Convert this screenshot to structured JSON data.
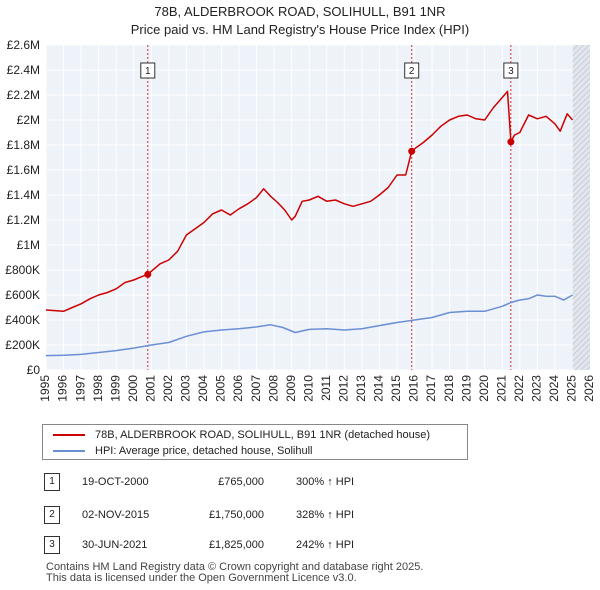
{
  "chart_data": {
    "type": "line",
    "title": "78B, ALDERBROOK ROAD, SOLIHULL, B91 1NR",
    "subtitle": "Price paid vs. HM Land Registry's House Price Index (HPI)",
    "xlim": [
      1995,
      2026
    ],
    "ylim": [
      0,
      2600000
    ],
    "x_ticks": [
      1995,
      1996,
      1997,
      1998,
      1999,
      2000,
      2001,
      2002,
      2003,
      2004,
      2005,
      2006,
      2007,
      2008,
      2009,
      2010,
      2011,
      2012,
      2013,
      2014,
      2015,
      2016,
      2017,
      2018,
      2019,
      2020,
      2021,
      2022,
      2023,
      2024,
      2025,
      2026
    ],
    "y_ticks": [
      {
        "value": 0,
        "label": "£0"
      },
      {
        "value": 200000,
        "label": "£200K"
      },
      {
        "value": 400000,
        "label": "£400K"
      },
      {
        "value": 600000,
        "label": "£600K"
      },
      {
        "value": 800000,
        "label": "£800K"
      },
      {
        "value": 1000000,
        "label": "£1M"
      },
      {
        "value": 1200000,
        "label": "£1.2M"
      },
      {
        "value": 1400000,
        "label": "£1.4M"
      },
      {
        "value": 1600000,
        "label": "£1.6M"
      },
      {
        "value": 1800000,
        "label": "£1.8M"
      },
      {
        "value": 2000000,
        "label": "£2M"
      },
      {
        "value": 2200000,
        "label": "£2.2M"
      },
      {
        "value": 2400000,
        "label": "£2.4M"
      },
      {
        "value": 2600000,
        "label": "£2.6M"
      }
    ],
    "future_shade_start": 2025.0,
    "series": [
      {
        "name": "78B, ALDERBROOK ROAD, SOLIHULL, B91 1NR (detached house)",
        "color": "#cc0000",
        "x": [
          1995.0,
          1995.5,
          1996.0,
          1996.5,
          1997.0,
          1997.5,
          1998.0,
          1998.5,
          1999.0,
          1999.5,
          2000.0,
          2000.5,
          2000.8,
          2001.0,
          2001.5,
          2002.0,
          2002.5,
          2003.0,
          2003.5,
          2004.0,
          2004.5,
          2005.0,
          2005.5,
          2006.0,
          2006.5,
          2007.0,
          2007.4,
          2007.8,
          2008.2,
          2008.6,
          2009.0,
          2009.2,
          2009.6,
          2010.0,
          2010.5,
          2011.0,
          2011.5,
          2012.0,
          2012.5,
          2013.0,
          2013.5,
          2014.0,
          2014.5,
          2015.0,
          2015.5,
          2015.84,
          2016.0,
          2016.5,
          2017.0,
          2017.5,
          2018.0,
          2018.5,
          2019.0,
          2019.5,
          2020.0,
          2020.5,
          2021.0,
          2021.3,
          2021.49,
          2021.7,
          2022.0,
          2022.5,
          2023.0,
          2023.5,
          2024.0,
          2024.3,
          2024.7,
          2025.0
        ],
        "y": [
          480000,
          475000,
          470000,
          500000,
          530000,
          570000,
          600000,
          620000,
          650000,
          700000,
          720000,
          750000,
          765000,
          790000,
          850000,
          880000,
          950000,
          1080000,
          1130000,
          1180000,
          1250000,
          1280000,
          1240000,
          1290000,
          1330000,
          1380000,
          1450000,
          1390000,
          1340000,
          1280000,
          1200000,
          1230000,
          1350000,
          1360000,
          1390000,
          1350000,
          1360000,
          1330000,
          1310000,
          1330000,
          1350000,
          1400000,
          1460000,
          1560000,
          1560000,
          1750000,
          1770000,
          1820000,
          1880000,
          1950000,
          2000000,
          2030000,
          2040000,
          2010000,
          2000000,
          2100000,
          2180000,
          2230000,
          1825000,
          1880000,
          1900000,
          2040000,
          2010000,
          2030000,
          1970000,
          1910000,
          2050000,
          2000000
        ]
      },
      {
        "name": "HPI: Average price, detached house, Solihull",
        "color": "#6b8fd4",
        "x": [
          1995.0,
          1996.0,
          1997.0,
          1998.0,
          1999.0,
          2000.0,
          2001.0,
          2002.0,
          2003.0,
          2004.0,
          2005.0,
          2006.0,
          2007.0,
          2007.8,
          2008.5,
          2009.2,
          2010.0,
          2011.0,
          2012.0,
          2013.0,
          2014.0,
          2015.0,
          2016.0,
          2017.0,
          2018.0,
          2019.0,
          2020.0,
          2021.0,
          2021.5,
          2022.0,
          2022.5,
          2023.0,
          2023.5,
          2024.0,
          2024.5,
          2025.0
        ],
        "y": [
          115000,
          118000,
          125000,
          140000,
          155000,
          175000,
          200000,
          220000,
          270000,
          305000,
          320000,
          330000,
          345000,
          362000,
          340000,
          300000,
          325000,
          330000,
          320000,
          330000,
          355000,
          380000,
          400000,
          420000,
          460000,
          470000,
          470000,
          510000,
          540000,
          560000,
          570000,
          600000,
          590000,
          590000,
          560000,
          600000
        ]
      }
    ],
    "transactions": [
      {
        "num": "1",
        "date": "19-OCT-2000",
        "price": "£765,000",
        "hpi": "300% ↑ HPI",
        "x": 2000.8,
        "y": 765000
      },
      {
        "num": "2",
        "date": "02-NOV-2015",
        "price": "£1,750,000",
        "hpi": "328% ↑ HPI",
        "x": 2015.84,
        "y": 1750000
      },
      {
        "num": "3",
        "date": "30-JUN-2021",
        "price": "£1,825,000",
        "hpi": "242% ↑ HPI",
        "x": 2021.49,
        "y": 1825000
      }
    ]
  },
  "legend": {
    "property_label": "78B, ALDERBROOK ROAD, SOLIHULL, B91 1NR (detached house)",
    "hpi_label": "HPI: Average price, detached house, Solihull"
  },
  "footer": {
    "line1": "Contains HM Land Registry data © Crown copyright and database right 2025.",
    "line2": "This data is licensed under the Open Government Licence v3.0."
  },
  "colors": {
    "property": "#cc0000",
    "hpi": "#6b8fd4",
    "plot_bg": "#eef2f9",
    "marker_line": "#cc0000"
  }
}
